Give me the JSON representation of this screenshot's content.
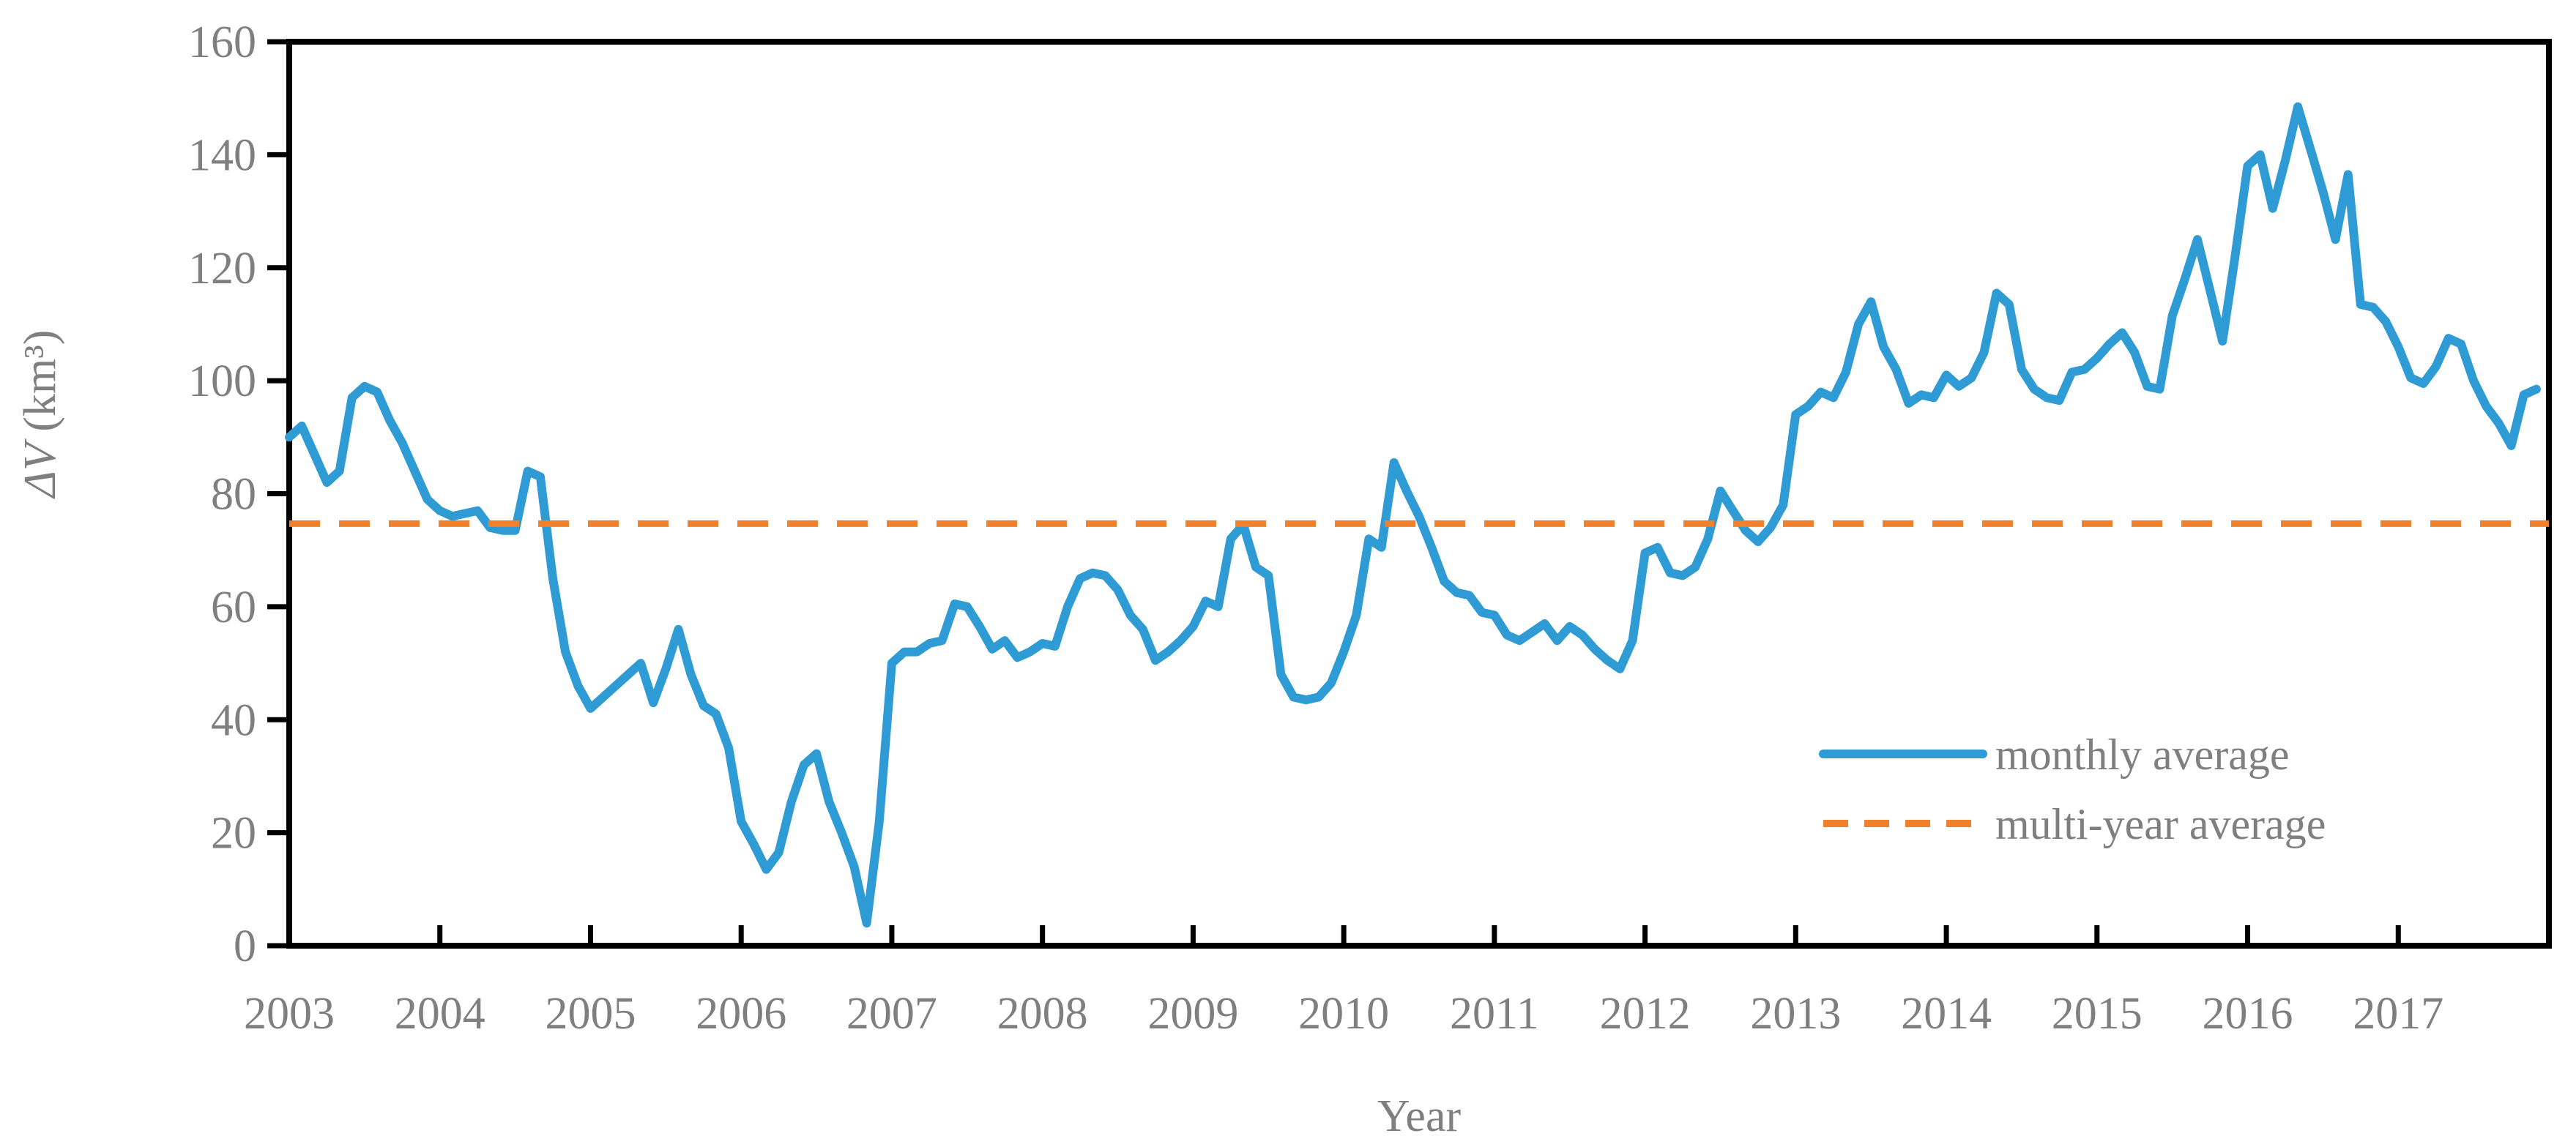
{
  "chart_data": {
    "type": "line",
    "title": "",
    "xlabel": "Year",
    "ylabel_italic": "ΔV",
    "ylabel_rest": " (km³)",
    "ylabel_full": "ΔV (km³)",
    "x_years": [
      2003,
      2004,
      2005,
      2006,
      2007,
      2008,
      2009,
      2010,
      2011,
      2012,
      2013,
      2014,
      2015,
      2016,
      2017
    ],
    "ylim": [
      0,
      160
    ],
    "yticks": [
      0,
      20,
      40,
      60,
      80,
      100,
      120,
      140,
      160
    ],
    "grid": false,
    "legend_position": "inside-right-middle",
    "series": [
      {
        "name": "monthly average",
        "style": "solid",
        "color": "#2E9BD5",
        "x_start": "2003-01",
        "x_end": "2017-12",
        "values": [
          90,
          92,
          87,
          82,
          84,
          97,
          99,
          98,
          93,
          89,
          84,
          79,
          77,
          76,
          76.5,
          77,
          74,
          73.5,
          73.5,
          84,
          83,
          65,
          52,
          46,
          42,
          44,
          46,
          48,
          50,
          43,
          49,
          56,
          48,
          42.5,
          41,
          35,
          22,
          18,
          13.5,
          16.5,
          25.5,
          32,
          34,
          25.5,
          20,
          14,
          4,
          22,
          50,
          52,
          52,
          53.5,
          54,
          60.5,
          60,
          56.5,
          52.5,
          54,
          51,
          52,
          53.5,
          53,
          60,
          65,
          66,
          65.5,
          63,
          58.5,
          56,
          50.5,
          52,
          54,
          56.5,
          61,
          60,
          72,
          74.5,
          67,
          65.5,
          48,
          44,
          43.5,
          44,
          46.5,
          52,
          58.5,
          72,
          70.5,
          85.5,
          80.5,
          76,
          70.5,
          64.5,
          62.5,
          62,
          59,
          58.5,
          55,
          54,
          55.5,
          57,
          54,
          56.5,
          55,
          52.5,
          50.5,
          49,
          54,
          69.5,
          70.5,
          66,
          65.5,
          67,
          72,
          80.5,
          77,
          73.5,
          71.5,
          74,
          78,
          94,
          95.5,
          98,
          97,
          101.5,
          110,
          114,
          106,
          102,
          96,
          97.5,
          97,
          101,
          99,
          100.5,
          105,
          115.5,
          113.5,
          102,
          98.5,
          97,
          96.5,
          101.5,
          102,
          104,
          106.5,
          108.5,
          105,
          99,
          98.5,
          111.5,
          118,
          125,
          116,
          107,
          122,
          138,
          140,
          130.5,
          139,
          148.5,
          141,
          133.5,
          125,
          136.5,
          113.5,
          113,
          110.5,
          106,
          100.5,
          99.5,
          102.5,
          107.5,
          106.5,
          100,
          95.5,
          92.5,
          88.5,
          97.5,
          98.5
        ]
      },
      {
        "name": "multi-year average",
        "style": "dashed",
        "color": "#F0802B",
        "value": 74.7
      }
    ]
  },
  "colors": {
    "axis": "#000000",
    "text": "#7f7f7f",
    "background": "#ffffff",
    "monthly_line": "#2E9BD5",
    "average_line": "#F0802B"
  }
}
